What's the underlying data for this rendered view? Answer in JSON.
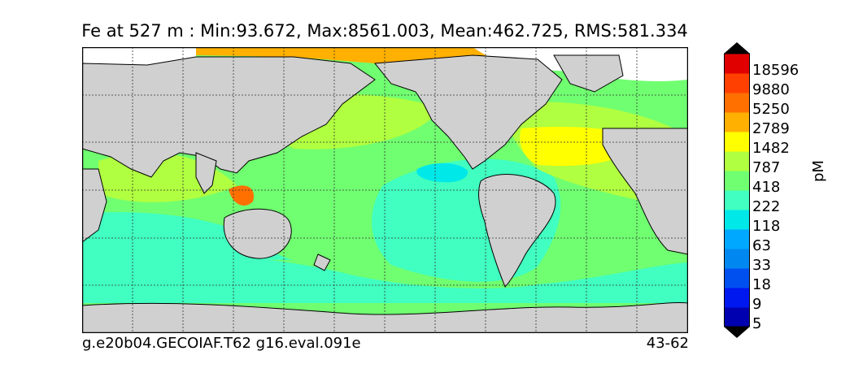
{
  "title": "Fe at 527 m : Min:93.672, Max:8561.003, Mean:462.725, RMS:581.334",
  "footer": {
    "case_name": "g.e20b04.GECOIAF.T62 g16.eval.091e",
    "years": "43-62"
  },
  "colorbar": {
    "units": "pM",
    "levels": [
      "18596",
      "9880",
      "5250",
      "2789",
      "1482",
      "787",
      "418",
      "222",
      "118",
      "63",
      "33",
      "18",
      "9",
      "5"
    ],
    "colors": [
      "#000070",
      "#0000b0",
      "#0018f0",
      "#0050f0",
      "#0088f0",
      "#00a8ff",
      "#00e8e8",
      "#40ffc0",
      "#70ff70",
      "#b0ff40",
      "#ffff00",
      "#ffb000",
      "#ff7000",
      "#ff4000",
      "#e00000",
      "#800000"
    ],
    "extend": "both"
  },
  "map": {
    "projection": "global lon-lat grid",
    "land_color": "#d0d0d0",
    "gridlines": "dashed"
  }
}
